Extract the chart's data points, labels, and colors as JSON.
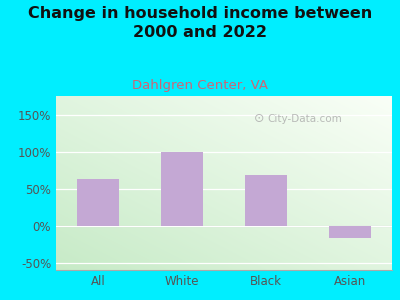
{
  "title": "Change in household income between\n2000 and 2022",
  "subtitle": "Dahlgren Center, VA",
  "categories": [
    "All",
    "White",
    "Black",
    "Asian"
  ],
  "values": [
    63,
    100,
    68,
    -17
  ],
  "bar_color": "#c4a8d4",
  "title_fontsize": 11.5,
  "subtitle_fontsize": 9.5,
  "tick_label_color": "#555555",
  "subtitle_color": "#cc6677",
  "background_color": "#00eeff",
  "ylim": [
    -60,
    175
  ],
  "yticks": [
    -50,
    0,
    50,
    100,
    150
  ],
  "ytick_labels": [
    "-50%",
    "0%",
    "50%",
    "100%",
    "150%"
  ],
  "watermark": "City-Data.com"
}
